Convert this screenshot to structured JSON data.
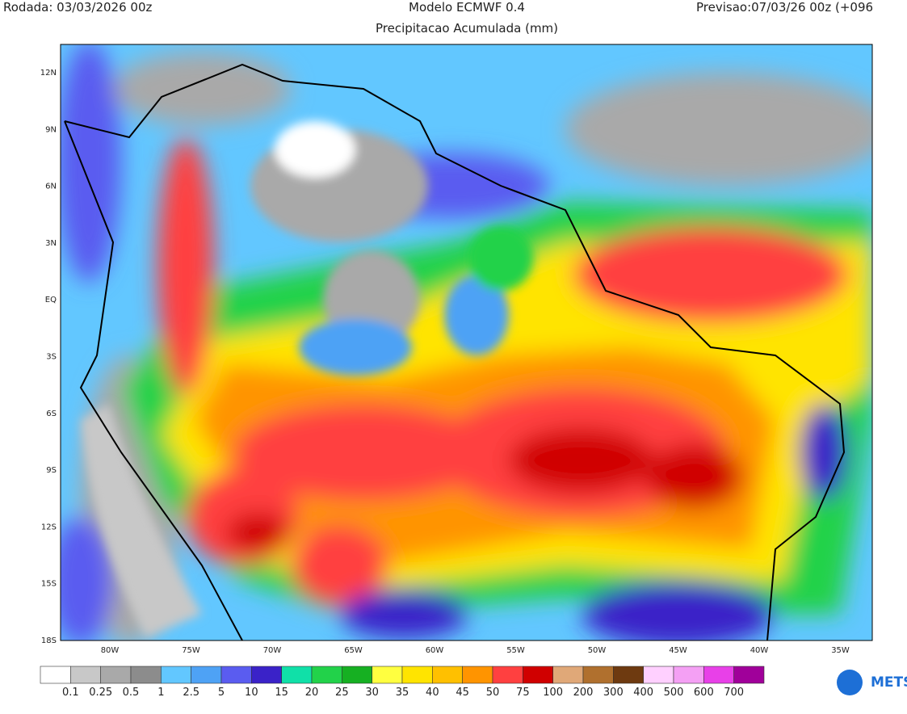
{
  "header": {
    "left": "Rodada: 03/03/2026 00z",
    "center": "Modelo ECMWF 0.4",
    "right": "Previsao:07/03/26 00z (+096",
    "subtitle": "Precipitacao Acumulada (mm)"
  },
  "map": {
    "lat_labels": [
      "12N",
      "9N",
      "6N",
      "3N",
      "EQ",
      "3S",
      "6S",
      "9S",
      "12S",
      "15S",
      "18S"
    ],
    "lon_labels": [
      "80W",
      "75W",
      "70W",
      "65W",
      "60W",
      "55W",
      "50W",
      "45W",
      "40W",
      "35W"
    ]
  },
  "colorbar": {
    "colors": [
      "#ffffff",
      "#c8c8c8",
      "#a9a9a9",
      "#8c8c8c",
      "#62c7ff",
      "#4ea2f5",
      "#5a5cf0",
      "#3a22c8",
      "#10e0a8",
      "#22d24a",
      "#16b022",
      "#ffff40",
      "#ffe400",
      "#ffc000",
      "#ff9400",
      "#ff4040",
      "#d00000",
      "#e0a878",
      "#b0702e",
      "#6e3a10",
      "#ffd0ff",
      "#f4a0f4",
      "#e840e8",
      "#a0009a"
    ],
    "labels": [
      "0.1",
      "0.25",
      "0.5",
      "1",
      "2.5",
      "5",
      "10",
      "15",
      "20",
      "25",
      "30",
      "35",
      "40",
      "45",
      "50",
      "75",
      "100",
      "200",
      "300",
      "400",
      "500",
      "600",
      "700"
    ]
  },
  "logo": "METS"
}
